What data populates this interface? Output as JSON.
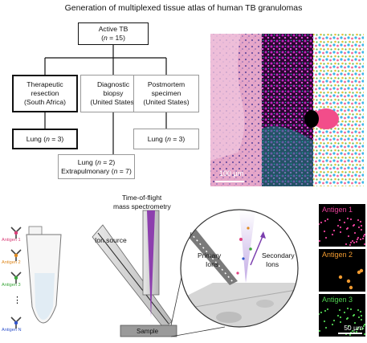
{
  "title": "Generation of multiplexed tissue atlas of human TB granulomas",
  "flowchart": {
    "root": {
      "line1": "Active TB",
      "n_pre": "(",
      "n_var": "n",
      "n_post": " = 15)"
    },
    "therapeutic": {
      "line1": "Therapeutic",
      "line2": "resection",
      "line3": "(South Africa)"
    },
    "diagnostic": {
      "line1": "Diagnostic",
      "line2": "biopsy",
      "line3": "(United States)"
    },
    "postmortem": {
      "line1": "Postmortem",
      "line2": "specimen",
      "line3": "(United States)"
    },
    "lung_left": {
      "pre": "Lung (",
      "var": "n",
      "post": " = 3)"
    },
    "lung_right": {
      "pre": "Lung (",
      "var": "n",
      "post": " = 3)"
    },
    "bottom_box": {
      "l1_pre": "Lung (",
      "l1_var": "n",
      "l1_post": " = 2)",
      "l2_pre": "Extrapulmonary (",
      "l2_var": "n",
      "l2_post": " = 7)"
    }
  },
  "microscopy": {
    "scale_bar": "100 µm"
  },
  "instrument": {
    "tof_label_1": "Time-of-flight",
    "tof_label_2": "mass spectrometry",
    "ion_source": "Ion source",
    "sample": "Sample",
    "primary_ions_1": "Primary",
    "primary_ions_2": "Ions",
    "secondary_ions_1": "Secondary",
    "secondary_ions_2": "Ions"
  },
  "antibodies": [
    "Antigen 1",
    "Antigen 2",
    "Antigen 3",
    "⋮",
    "Antigen N"
  ],
  "antibody_colors": [
    "#d9407a",
    "#e08a20",
    "#3aa63a",
    "#000000",
    "#3355cc"
  ],
  "channels": [
    {
      "label": "Antigen 1",
      "color": "#e8409a"
    },
    {
      "label": "Antigen 2",
      "color": "#f09a30"
    },
    {
      "label": "Antigen 3",
      "color": "#50d050"
    }
  ],
  "channel_scale": "50 µm"
}
